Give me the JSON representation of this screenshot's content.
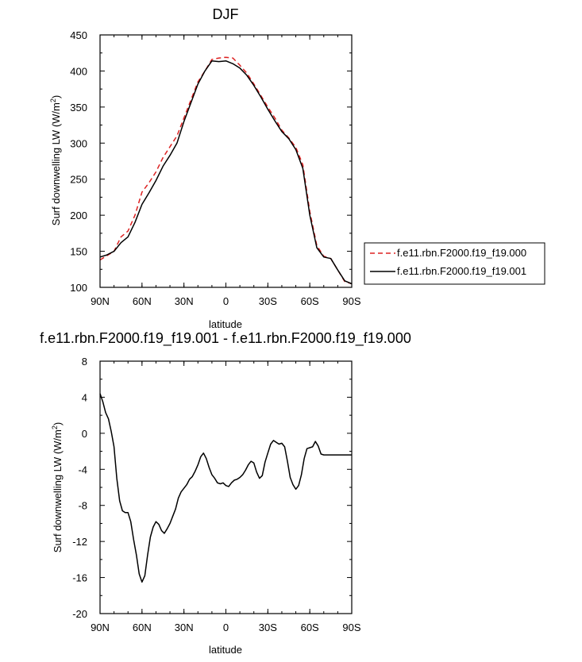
{
  "chart_data": [
    {
      "type": "line",
      "title": "DJF",
      "xlabel": "latitude",
      "ylabel": "Surf downwelling LW (W/m",
      "ylabel_sup": "2",
      "ylabel_close": ")",
      "xlim": [
        90,
        -90
      ],
      "ylim": [
        100,
        450
      ],
      "xticks": [
        90,
        60,
        30,
        0,
        -30,
        -60,
        -90
      ],
      "xtick_labels": [
        "90N",
        "60N",
        "30N",
        "0",
        "30S",
        "60S",
        "90S"
      ],
      "yticks": [
        100,
        150,
        200,
        250,
        300,
        350,
        400,
        450
      ],
      "ytick_labels": [
        "100",
        "150",
        "200",
        "250",
        "300",
        "350",
        "400",
        "450"
      ],
      "legend": "right",
      "series": [
        {
          "name": "f.e11.rbn.F2000.f19_f19.000",
          "color": "#dd2222",
          "dash": "dashed",
          "x": [
            90,
            85,
            80,
            75,
            70,
            65,
            60,
            55,
            50,
            45,
            40,
            35,
            30,
            25,
            20,
            15,
            10,
            5,
            0,
            -5,
            -10,
            -15,
            -20,
            -25,
            -30,
            -35,
            -40,
            -45,
            -50,
            -55,
            -60,
            -65,
            -70,
            -75,
            -80,
            -85,
            -90
          ],
          "y": [
            138,
            144,
            150,
            170,
            178,
            200,
            232,
            245,
            260,
            280,
            295,
            310,
            335,
            360,
            385,
            400,
            416,
            418,
            419,
            418,
            408,
            397,
            382,
            366,
            350,
            335,
            318,
            307,
            294,
            270,
            205,
            158,
            143,
            140,
            124,
            108,
            105
          ]
        },
        {
          "name": "f.e11.rbn.F2000.f19_f19.001",
          "color": "#000000",
          "dash": "solid",
          "x": [
            90,
            85,
            80,
            75,
            70,
            65,
            60,
            55,
            50,
            45,
            40,
            35,
            30,
            25,
            20,
            15,
            10,
            5,
            0,
            -5,
            -10,
            -15,
            -20,
            -25,
            -30,
            -35,
            -40,
            -45,
            -50,
            -55,
            -60,
            -65,
            -70,
            -75,
            -80,
            -85,
            -90
          ],
          "y": [
            142,
            145,
            150,
            162,
            170,
            190,
            215,
            231,
            248,
            268,
            283,
            300,
            330,
            356,
            382,
            400,
            414,
            413,
            414,
            410,
            404,
            394,
            380,
            364,
            347,
            331,
            316,
            306,
            291,
            265,
            200,
            155,
            142,
            140,
            124,
            109,
            105
          ]
        }
      ]
    },
    {
      "type": "line",
      "title": "f.e11.rbn.F2000.f19_f19.001 - f.e11.rbn.F2000.f19_f19.000",
      "xlabel": "latitude",
      "ylabel": "Surf downwelling LW (W/m",
      "ylabel_sup": "2",
      "ylabel_close": ")",
      "xlim": [
        90,
        -90
      ],
      "ylim": [
        -20,
        8
      ],
      "xticks": [
        90,
        60,
        30,
        0,
        -30,
        -60,
        -90
      ],
      "xtick_labels": [
        "90N",
        "60N",
        "30N",
        "0",
        "30S",
        "60S",
        "90S"
      ],
      "yticks": [
        -20,
        -16,
        -12,
        -8,
        -4,
        0,
        4,
        8
      ],
      "ytick_labels": [
        "-20",
        "-16",
        "-12",
        "-8",
        "-4",
        "0",
        "4",
        "8"
      ],
      "series": [
        {
          "color": "#000000",
          "dash": "solid",
          "x": [
            90,
            88,
            86,
            84,
            82,
            80,
            78,
            76,
            74,
            72,
            70,
            68,
            66,
            64,
            62,
            60,
            58,
            56,
            54,
            52,
            50,
            48,
            46,
            44,
            42,
            40,
            38,
            36,
            34,
            32,
            30,
            28,
            26,
            24,
            22,
            20,
            18,
            16,
            14,
            12,
            10,
            8,
            6,
            4,
            2,
            0,
            -2,
            -4,
            -6,
            -8,
            -10,
            -12,
            -14,
            -16,
            -18,
            -20,
            -22,
            -24,
            -26,
            -28,
            -30,
            -32,
            -34,
            -36,
            -38,
            -40,
            -42,
            -44,
            -46,
            -48,
            -50,
            -52,
            -54,
            -56,
            -58,
            -60,
            -62,
            -64,
            -66,
            -68,
            -70,
            -72,
            -74,
            -76,
            -78,
            -80,
            -82,
            -84,
            -86,
            -88,
            -90
          ],
          "y": [
            4.4,
            3.5,
            2.3,
            1.6,
            0.2,
            -1.5,
            -5.0,
            -7.5,
            -8.6,
            -8.8,
            -8.8,
            -9.8,
            -11.8,
            -13.5,
            -15.6,
            -16.5,
            -15.8,
            -13.5,
            -11.5,
            -10.4,
            -9.8,
            -10.1,
            -10.8,
            -11.1,
            -10.6,
            -10.0,
            -9.2,
            -8.4,
            -7.2,
            -6.5,
            -6.1,
            -5.7,
            -5.1,
            -4.8,
            -4.2,
            -3.5,
            -2.6,
            -2.2,
            -2.8,
            -3.8,
            -4.6,
            -5.0,
            -5.5,
            -5.6,
            -5.5,
            -5.8,
            -5.9,
            -5.5,
            -5.2,
            -5.1,
            -4.9,
            -4.6,
            -4.1,
            -3.5,
            -3.1,
            -3.3,
            -4.3,
            -5.0,
            -4.7,
            -3.2,
            -2.2,
            -1.2,
            -0.8,
            -1.0,
            -1.2,
            -1.1,
            -1.5,
            -3.1,
            -4.9,
            -5.7,
            -6.2,
            -5.8,
            -4.6,
            -2.8,
            -1.7,
            -1.6,
            -1.5,
            -0.9,
            -1.4,
            -2.3,
            -2.4,
            -2.4,
            -2.4,
            -2.4,
            -2.4,
            -2.4,
            -2.4,
            -2.4,
            -2.4,
            -2.4,
            -2.4
          ]
        }
      ]
    }
  ]
}
